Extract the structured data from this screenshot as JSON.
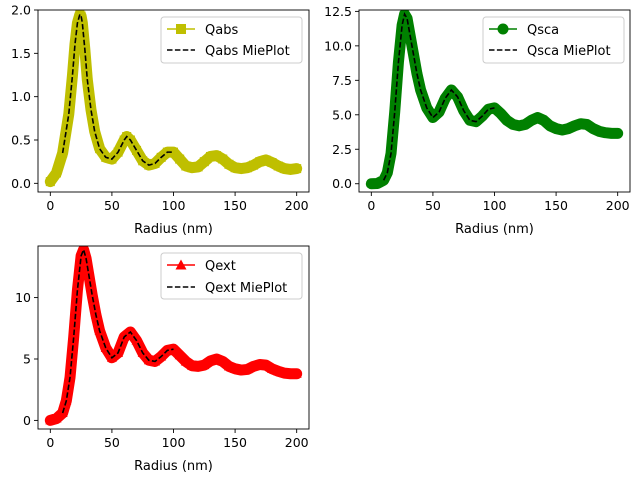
{
  "chart_data": [
    {
      "type": "line",
      "xlabel": "Radius (nm)",
      "ylabel": "",
      "xlim": [
        -10,
        210
      ],
      "ylim": [
        -0.1,
        2.0
      ],
      "xticks": [
        0,
        50,
        100,
        150,
        200
      ],
      "xtick_labels": [
        "0",
        "50",
        "100",
        "150",
        "200"
      ],
      "yticks": [
        0.0,
        0.5,
        1.0,
        1.5,
        2.0
      ],
      "ytick_labels": [
        "0.0",
        "0.5",
        "1.0",
        "1.5",
        "2.0"
      ],
      "legend_position": "top-right",
      "x": [
        0,
        5,
        10,
        15,
        18,
        20,
        22,
        24,
        25,
        26,
        28,
        30,
        33,
        36,
        40,
        45,
        50,
        55,
        60,
        62,
        65,
        70,
        75,
        80,
        85,
        90,
        95,
        100,
        105,
        110,
        115,
        120,
        125,
        130,
        135,
        140,
        145,
        150,
        155,
        160,
        165,
        170,
        175,
        180,
        185,
        190,
        195,
        200
      ],
      "series": [
        {
          "name": "Qabs",
          "color": "#bfbf00",
          "style": "solid",
          "marker": "square",
          "values": [
            0.02,
            0.12,
            0.35,
            0.8,
            1.25,
            1.6,
            1.85,
            1.95,
            1.93,
            1.85,
            1.55,
            1.2,
            0.85,
            0.6,
            0.4,
            0.3,
            0.28,
            0.36,
            0.5,
            0.54,
            0.5,
            0.38,
            0.26,
            0.21,
            0.23,
            0.3,
            0.36,
            0.36,
            0.28,
            0.2,
            0.18,
            0.19,
            0.25,
            0.31,
            0.32,
            0.28,
            0.22,
            0.18,
            0.17,
            0.18,
            0.21,
            0.25,
            0.27,
            0.24,
            0.2,
            0.17,
            0.16,
            0.17
          ]
        },
        {
          "name": "Qabs MiePlot",
          "color": "#000000",
          "style": "dashed",
          "x_range": [
            10,
            100
          ],
          "values": [
            0.02,
            0.12,
            0.35,
            0.8,
            1.25,
            1.6,
            1.85,
            1.95,
            1.93,
            1.85,
            1.55,
            1.2,
            0.85,
            0.6,
            0.4,
            0.3,
            0.28,
            0.36,
            0.5,
            0.54,
            0.5,
            0.38,
            0.26,
            0.21,
            0.23,
            0.3,
            0.36,
            0.36,
            0.28,
            0.2,
            0.18,
            0.19,
            0.25,
            0.31,
            0.32,
            0.28,
            0.22,
            0.18,
            0.17,
            0.18,
            0.21,
            0.25,
            0.27,
            0.24,
            0.2,
            0.17,
            0.16,
            0.17
          ]
        }
      ]
    },
    {
      "type": "line",
      "xlabel": "Radius (nm)",
      "ylabel": "",
      "xlim": [
        -10,
        210
      ],
      "ylim": [
        -0.6,
        12.6
      ],
      "xticks": [
        0,
        50,
        100,
        150,
        200
      ],
      "xtick_labels": [
        "0",
        "50",
        "100",
        "150",
        "200"
      ],
      "yticks": [
        0.0,
        2.5,
        5.0,
        7.5,
        10.0,
        12.5
      ],
      "ytick_labels": [
        "0.0",
        "2.5",
        "5.0",
        "7.5",
        "10.0",
        "12.5"
      ],
      "legend_position": "top-right",
      "x": [
        0,
        5,
        10,
        13,
        16,
        19,
        22,
        25,
        27,
        29,
        31,
        34,
        37,
        40,
        45,
        50,
        55,
        60,
        65,
        70,
        75,
        80,
        85,
        90,
        95,
        100,
        105,
        110,
        115,
        120,
        125,
        130,
        135,
        140,
        145,
        150,
        155,
        160,
        165,
        170,
        175,
        180,
        185,
        190,
        195,
        200
      ],
      "series": [
        {
          "name": "Qsca",
          "color": "#008000",
          "style": "solid",
          "marker": "circle",
          "values": [
            0.0,
            0.02,
            0.25,
            0.8,
            2.2,
            5.2,
            8.8,
            11.5,
            12.3,
            12.0,
            11.0,
            9.5,
            8.0,
            6.8,
            5.5,
            4.8,
            5.2,
            6.2,
            6.8,
            6.3,
            5.3,
            4.6,
            4.5,
            4.9,
            5.4,
            5.5,
            5.1,
            4.6,
            4.3,
            4.2,
            4.3,
            4.6,
            4.8,
            4.6,
            4.2,
            4.0,
            3.9,
            4.0,
            4.2,
            4.35,
            4.3,
            4.0,
            3.8,
            3.7,
            3.65,
            3.65
          ]
        },
        {
          "name": "Qsca MiePlot",
          "color": "#000000",
          "style": "dashed",
          "x_range": [
            10,
            100
          ],
          "values": [
            0.0,
            0.02,
            0.25,
            0.8,
            2.2,
            5.2,
            8.8,
            11.5,
            12.3,
            12.0,
            11.0,
            9.5,
            8.0,
            6.8,
            5.5,
            4.8,
            5.2,
            6.2,
            6.8,
            6.3,
            5.3,
            4.6,
            4.5,
            4.9,
            5.4,
            5.5,
            5.1,
            4.6,
            4.3,
            4.2,
            4.3,
            4.6,
            4.8,
            4.6,
            4.2,
            4.0,
            3.9,
            4.0,
            4.2,
            4.35,
            4.3,
            4.0,
            3.8,
            3.7,
            3.65,
            3.65
          ]
        }
      ]
    },
    {
      "type": "line",
      "xlabel": "Radius (nm)",
      "ylabel": "",
      "xlim": [
        -10,
        210
      ],
      "ylim": [
        -0.7,
        14.2
      ],
      "xticks": [
        0,
        50,
        100,
        150,
        200
      ],
      "xtick_labels": [
        "0",
        "50",
        "100",
        "150",
        "200"
      ],
      "yticks": [
        0,
        5,
        10
      ],
      "ytick_labels": [
        "0",
        "5",
        "10"
      ],
      "legend_position": "top-right",
      "x": [
        0,
        5,
        10,
        13,
        16,
        19,
        22,
        25,
        27,
        29,
        31,
        34,
        37,
        40,
        45,
        50,
        55,
        60,
        65,
        70,
        75,
        80,
        85,
        90,
        95,
        100,
        105,
        110,
        115,
        120,
        125,
        130,
        135,
        140,
        145,
        150,
        155,
        160,
        165,
        170,
        175,
        180,
        185,
        190,
        195,
        200
      ],
      "series": [
        {
          "name": "Qext",
          "color": "#ff0000",
          "style": "solid",
          "marker": "triangle",
          "values": [
            0.0,
            0.15,
            0.6,
            1.6,
            3.5,
            6.8,
            10.6,
            13.4,
            13.9,
            13.2,
            12.0,
            10.2,
            8.6,
            7.3,
            5.9,
            5.1,
            5.5,
            6.8,
            7.2,
            6.5,
            5.5,
            4.9,
            4.8,
            5.2,
            5.7,
            5.8,
            5.3,
            4.8,
            4.45,
            4.4,
            4.5,
            4.85,
            5.0,
            4.8,
            4.4,
            4.2,
            4.1,
            4.15,
            4.4,
            4.55,
            4.5,
            4.2,
            4.0,
            3.85,
            3.8,
            3.8
          ]
        },
        {
          "name": "Qext MiePlot",
          "color": "#000000",
          "style": "dashed",
          "x_range": [
            10,
            100
          ],
          "values": [
            0.0,
            0.15,
            0.6,
            1.6,
            3.5,
            6.8,
            10.6,
            13.4,
            13.9,
            13.2,
            12.0,
            10.2,
            8.6,
            7.3,
            5.9,
            5.1,
            5.5,
            6.8,
            7.2,
            6.5,
            5.5,
            4.9,
            4.8,
            5.2,
            5.7,
            5.8,
            5.3,
            4.8,
            4.45,
            4.4,
            4.5,
            4.85,
            5.0,
            4.8,
            4.4,
            4.2,
            4.1,
            4.15,
            4.4,
            4.55,
            4.5,
            4.2,
            4.0,
            3.85,
            3.8,
            3.8
          ]
        }
      ]
    }
  ]
}
